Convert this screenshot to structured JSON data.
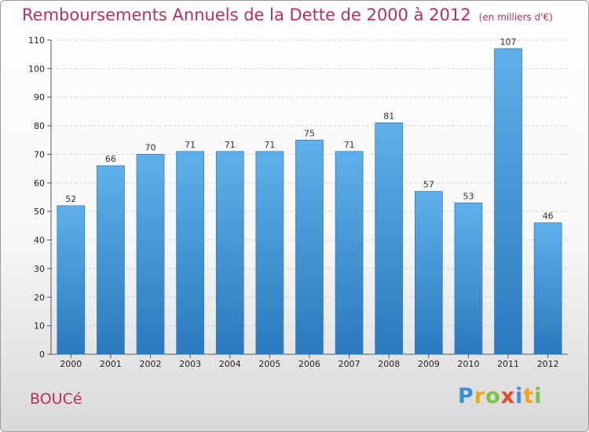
{
  "chart_data": {
    "type": "bar",
    "title": "Remboursements Annuels de la Dette de 2000 à 2012",
    "subtitle": "(en milliers d'€)",
    "categories": [
      "2000",
      "2001",
      "2002",
      "2003",
      "2004",
      "2005",
      "2006",
      "2007",
      "2008",
      "2009",
      "2010",
      "2011",
      "2012"
    ],
    "values": [
      52,
      66,
      70,
      71,
      71,
      71,
      75,
      71,
      81,
      57,
      53,
      107,
      46
    ],
    "ylim": [
      0,
      110
    ],
    "yticks": [
      0,
      10,
      20,
      30,
      40,
      50,
      60,
      70,
      80,
      90,
      100,
      110
    ],
    "grid": true,
    "bar_color": "#4a9fe0",
    "title_color": "#b5305a"
  },
  "commune": "BOUCé",
  "logo": {
    "text": "Proxiti",
    "letters": [
      {
        "ch": "P",
        "color": "#3a8fd8"
      },
      {
        "ch": "r",
        "color": "#f2a41c"
      },
      {
        "ch": "o",
        "color": "#7cc242"
      },
      {
        "ch": "x",
        "color": "#e8452c"
      },
      {
        "ch": "i",
        "color": "#3a8fd8"
      },
      {
        "ch": "t",
        "color": "#f2a41c"
      },
      {
        "ch": "i",
        "color": "#7cc242"
      }
    ]
  }
}
